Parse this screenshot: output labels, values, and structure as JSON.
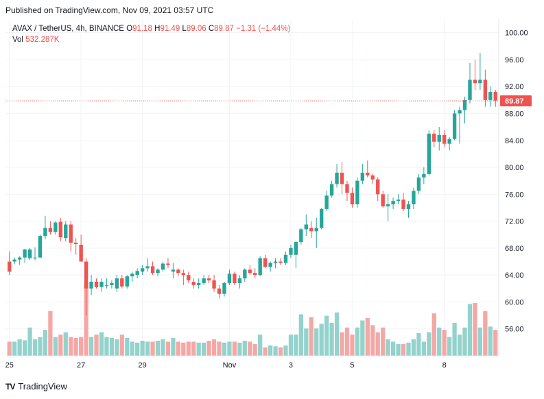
{
  "header": {
    "published": "Published on TradingView.com, Nov 09, 2021 03:57 UTC"
  },
  "legend": {
    "symbol": "AVAX / TetherUS, 4h, BINANCE",
    "open_label": "O",
    "open": "91.18",
    "high_label": "H",
    "high": "91.49",
    "low_label": "L",
    "low": "89.06",
    "close_label": "C",
    "close": "89.87",
    "change": "−1.31 (−1.44%)",
    "vol_label": "Vol",
    "vol": "532.287K"
  },
  "footer": {
    "logo_mark": "TV",
    "logo_text": "TradingView"
  },
  "colors": {
    "up": "#26a69a",
    "down": "#ef5350",
    "vol_up": "#94d2cc",
    "vol_down": "#f4a8a6",
    "grid": "#f0f3fa",
    "price_line": "#ef5350"
  },
  "chart_data": {
    "type": "candlestick",
    "ylim": [
      52,
      102
    ],
    "y_ticks": [
      "100.00",
      "96.00",
      "92.00",
      "88.00",
      "84.00",
      "80.00",
      "76.00",
      "72.00",
      "68.00",
      "64.00",
      "60.00",
      "56.00"
    ],
    "y_tick_values": [
      100,
      96,
      92,
      88,
      84,
      80,
      76,
      72,
      68,
      64,
      60,
      56
    ],
    "x_ticks": [
      {
        "label": "25",
        "index": 0
      },
      {
        "label": "27",
        "index": 14
      },
      {
        "label": "29",
        "index": 26
      },
      {
        "label": "Nov",
        "index": 43
      },
      {
        "label": "3",
        "index": 55
      },
      {
        "label": "5",
        "index": 67
      },
      {
        "label": "8",
        "index": 85
      }
    ],
    "last_price": 89.87,
    "last_price_label": "89.87",
    "candles": [
      [
        66.0,
        67.5,
        64.0,
        64.5
      ],
      [
        66.0,
        66.6,
        65.6,
        66.3
      ],
      [
        66.3,
        66.8,
        65.5,
        66.6
      ],
      [
        66.6,
        67.9,
        65.8,
        67.8
      ],
      [
        66.5,
        68.0,
        66.2,
        67.8
      ],
      [
        66.5,
        68.1,
        66.2,
        66.6
      ],
      [
        66.6,
        70.0,
        66.5,
        69.8
      ],
      [
        69.8,
        72.8,
        69.3,
        71.0
      ],
      [
        71.0,
        72.0,
        70.0,
        70.4
      ],
      [
        70.4,
        72.0,
        70.0,
        71.8
      ],
      [
        71.9,
        72.5,
        69.0,
        69.6
      ],
      [
        69.5,
        72.0,
        69.0,
        71.5
      ],
      [
        71.5,
        72.0,
        67.5,
        68.8
      ],
      [
        68.8,
        69.5,
        67.0,
        68.6
      ],
      [
        68.5,
        70.0,
        66.0,
        66.0
      ],
      [
        66.0,
        66.5,
        58.0,
        62.0
      ],
      [
        62.0,
        64.0,
        61.0,
        63.0
      ],
      [
        63.0,
        63.5,
        62.0,
        62.2
      ],
      [
        62.2,
        63.5,
        61.5,
        63.0
      ],
      [
        62.5,
        63.5,
        62.0,
        62.5
      ],
      [
        62.5,
        63.2,
        62.0,
        62.8
      ],
      [
        62.0,
        64.0,
        61.5,
        63.5
      ],
      [
        63.5,
        64.0,
        62.0,
        62.3
      ],
      [
        62.3,
        64.0,
        62.0,
        63.8
      ],
      [
        63.8,
        64.5,
        63.0,
        64.2
      ],
      [
        64.0,
        65.0,
        63.5,
        64.6
      ],
      [
        64.5,
        65.5,
        64.0,
        65.0
      ],
      [
        65.0,
        66.5,
        64.5,
        65.3
      ],
      [
        65.3,
        66.0,
        64.0,
        64.3
      ],
      [
        64.3,
        65.0,
        63.8,
        64.8
      ],
      [
        64.8,
        66.0,
        64.5,
        65.7
      ],
      [
        65.7,
        66.5,
        65.0,
        65.5
      ],
      [
        64.5,
        65.8,
        63.5,
        64.8
      ],
      [
        64.8,
        65.0,
        63.8,
        64.3
      ],
      [
        64.3,
        64.8,
        62.5,
        64.0
      ],
      [
        64.0,
        64.5,
        62.8,
        63.2
      ],
      [
        63.0,
        63.5,
        62.0,
        62.5
      ],
      [
        62.5,
        63.5,
        62.0,
        62.8
      ],
      [
        62.8,
        64.0,
        62.5,
        63.5
      ],
      [
        63.5,
        64.0,
        62.8,
        63.2
      ],
      [
        63.2,
        64.0,
        61.5,
        62.0
      ],
      [
        62.0,
        62.5,
        60.5,
        61.2
      ],
      [
        61.2,
        63.0,
        60.8,
        62.8
      ],
      [
        62.8,
        64.8,
        62.5,
        64.2
      ],
      [
        64.2,
        64.5,
        62.5,
        62.8
      ],
      [
        62.8,
        64.0,
        62.0,
        63.5
      ],
      [
        63.5,
        65.0,
        63.0,
        64.8
      ],
      [
        64.8,
        65.5,
        64.0,
        64.3
      ],
      [
        64.3,
        65.0,
        63.5,
        64.0
      ],
      [
        64.0,
        66.8,
        63.8,
        66.5
      ],
      [
        66.5,
        67.0,
        65.0,
        65.2
      ],
      [
        65.2,
        66.0,
        64.5,
        65.8
      ],
      [
        65.8,
        66.5,
        65.0,
        66.0
      ],
      [
        66.0,
        66.5,
        65.5,
        65.8
      ],
      [
        65.8,
        67.5,
        65.5,
        67.0
      ],
      [
        67.0,
        68.5,
        66.5,
        68.0
      ],
      [
        67.0,
        69.0,
        65.0,
        68.9
      ],
      [
        68.9,
        71.0,
        68.5,
        70.8
      ],
      [
        70.8,
        73.0,
        69.8,
        71.5
      ],
      [
        71.0,
        72.0,
        69.5,
        70.5
      ],
      [
        70.5,
        72.5,
        68.0,
        71.0
      ],
      [
        71.0,
        74.0,
        70.8,
        73.8
      ],
      [
        73.8,
        76.5,
        73.5,
        75.8
      ],
      [
        75.8,
        78.0,
        75.5,
        77.5
      ],
      [
        77.5,
        80.5,
        77.0,
        79.2
      ],
      [
        79.2,
        80.8,
        76.0,
        77.5
      ],
      [
        77.5,
        78.0,
        75.0,
        76.2
      ],
      [
        76.2,
        77.0,
        74.0,
        74.5
      ],
      [
        74.5,
        78.5,
        74.0,
        78.0
      ],
      [
        78.0,
        80.5,
        77.5,
        79.2
      ],
      [
        79.2,
        81.0,
        78.5,
        78.8
      ],
      [
        78.8,
        79.0,
        77.5,
        78.2
      ],
      [
        78.2,
        78.5,
        75.0,
        76.0
      ],
      [
        76.0,
        76.5,
        74.0,
        74.2
      ],
      [
        74.2,
        76.0,
        72.0,
        74.5
      ],
      [
        74.5,
        75.5,
        73.8,
        75.0
      ],
      [
        75.0,
        76.0,
        74.5,
        75.2
      ],
      [
        75.2,
        76.2,
        73.5,
        73.8
      ],
      [
        73.8,
        75.0,
        72.5,
        74.5
      ],
      [
        74.5,
        77.0,
        73.8,
        76.5
      ],
      [
        76.5,
        79.0,
        76.0,
        78.5
      ],
      [
        78.5,
        80.0,
        77.5,
        79.0
      ],
      [
        79.0,
        85.5,
        78.8,
        85.0
      ],
      [
        85.0,
        85.5,
        83.0,
        83.8
      ],
      [
        83.8,
        86.0,
        82.5,
        84.8
      ],
      [
        84.8,
        85.5,
        83.0,
        83.5
      ],
      [
        83.5,
        84.5,
        82.5,
        84.2
      ],
      [
        84.2,
        88.5,
        84.0,
        88.0
      ],
      [
        88.0,
        89.0,
        83.5,
        88.5
      ],
      [
        88.5,
        90.5,
        86.5,
        90.0
      ],
      [
        90.0,
        95.5,
        89.5,
        93.0
      ],
      [
        93.0,
        96.0,
        91.5,
        92.5
      ],
      [
        92.5,
        97.0,
        91.5,
        93.0
      ],
      [
        93.0,
        94.5,
        89.0,
        90.0
      ],
      [
        90.0,
        92.0,
        89.0,
        91.2
      ],
      [
        91.2,
        91.5,
        89.0,
        89.9
      ]
    ],
    "volumes": [
      0.03,
      0.03,
      0.035,
      0.033,
      0.06,
      0.035,
      0.04,
      0.055,
      0.095,
      0.04,
      0.045,
      0.05,
      0.04,
      0.038,
      0.04,
      0.155,
      0.04,
      0.045,
      0.05,
      0.04,
      0.038,
      0.035,
      0.045,
      0.038,
      0.03,
      0.028,
      0.032,
      0.03,
      0.03,
      0.032,
      0.035,
      0.03,
      0.038,
      0.03,
      0.028,
      0.03,
      0.03,
      0.028,
      0.028,
      0.032,
      0.035,
      0.03,
      0.028,
      0.03,
      0.03,
      0.028,
      0.032,
      0.03,
      0.025,
      0.045,
      0.018,
      0.022,
      0.02,
      0.018,
      0.022,
      0.045,
      0.045,
      0.088,
      0.058,
      0.082,
      0.058,
      0.068,
      0.085,
      0.07,
      0.092,
      0.05,
      0.06,
      0.045,
      0.06,
      0.075,
      0.08,
      0.065,
      0.05,
      0.06,
      0.035,
      0.03,
      0.025,
      0.025,
      0.028,
      0.035,
      0.048,
      0.03,
      0.05,
      0.09,
      0.06,
      0.055,
      0.04,
      0.07,
      0.045,
      0.06,
      0.11,
      0.112,
      0.06,
      0.095,
      0.062,
      0.055
    ]
  }
}
